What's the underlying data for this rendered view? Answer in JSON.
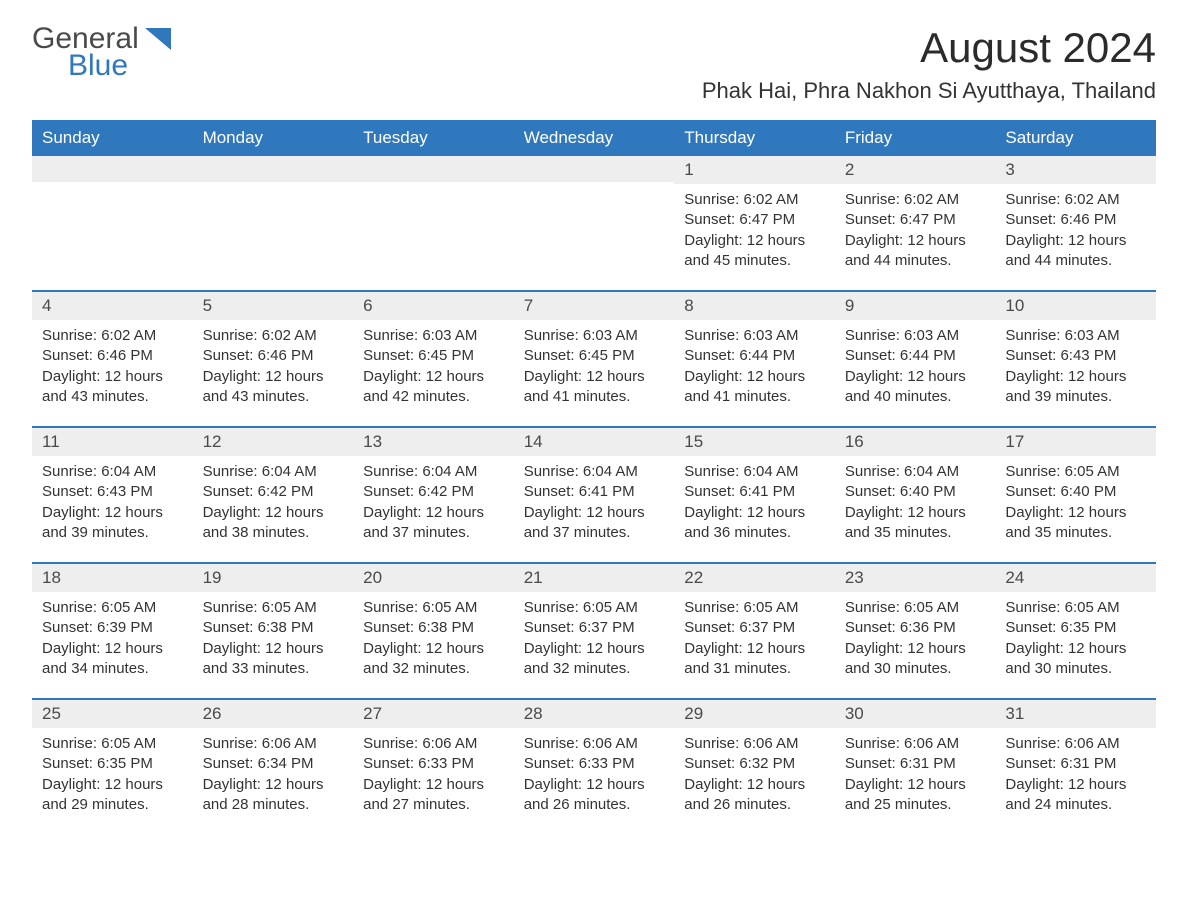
{
  "logo": {
    "general": "General",
    "blue": "Blue"
  },
  "title": "August 2024",
  "location": "Phak Hai, Phra Nakhon Si Ayutthaya, Thailand",
  "colors": {
    "header_bg": "#2f78bd",
    "header_text": "#ffffff",
    "daynum_bg": "#eeeeee",
    "body_text": "#333333",
    "rule": "#2f78bd",
    "page_bg": "#ffffff"
  },
  "typography": {
    "title_fontsize": 42,
    "location_fontsize": 22,
    "dow_fontsize": 17,
    "daynum_fontsize": 17,
    "body_fontsize": 15
  },
  "dow": [
    "Sunday",
    "Monday",
    "Tuesday",
    "Wednesday",
    "Thursday",
    "Friday",
    "Saturday"
  ],
  "weeks": [
    [
      {
        "n": "",
        "sunrise": "",
        "sunset": "",
        "daylight": ""
      },
      {
        "n": "",
        "sunrise": "",
        "sunset": "",
        "daylight": ""
      },
      {
        "n": "",
        "sunrise": "",
        "sunset": "",
        "daylight": ""
      },
      {
        "n": "",
        "sunrise": "",
        "sunset": "",
        "daylight": ""
      },
      {
        "n": "1",
        "sunrise": "Sunrise: 6:02 AM",
        "sunset": "Sunset: 6:47 PM",
        "daylight": "Daylight: 12 hours and 45 minutes."
      },
      {
        "n": "2",
        "sunrise": "Sunrise: 6:02 AM",
        "sunset": "Sunset: 6:47 PM",
        "daylight": "Daylight: 12 hours and 44 minutes."
      },
      {
        "n": "3",
        "sunrise": "Sunrise: 6:02 AM",
        "sunset": "Sunset: 6:46 PM",
        "daylight": "Daylight: 12 hours and 44 minutes."
      }
    ],
    [
      {
        "n": "4",
        "sunrise": "Sunrise: 6:02 AM",
        "sunset": "Sunset: 6:46 PM",
        "daylight": "Daylight: 12 hours and 43 minutes."
      },
      {
        "n": "5",
        "sunrise": "Sunrise: 6:02 AM",
        "sunset": "Sunset: 6:46 PM",
        "daylight": "Daylight: 12 hours and 43 minutes."
      },
      {
        "n": "6",
        "sunrise": "Sunrise: 6:03 AM",
        "sunset": "Sunset: 6:45 PM",
        "daylight": "Daylight: 12 hours and 42 minutes."
      },
      {
        "n": "7",
        "sunrise": "Sunrise: 6:03 AM",
        "sunset": "Sunset: 6:45 PM",
        "daylight": "Daylight: 12 hours and 41 minutes."
      },
      {
        "n": "8",
        "sunrise": "Sunrise: 6:03 AM",
        "sunset": "Sunset: 6:44 PM",
        "daylight": "Daylight: 12 hours and 41 minutes."
      },
      {
        "n": "9",
        "sunrise": "Sunrise: 6:03 AM",
        "sunset": "Sunset: 6:44 PM",
        "daylight": "Daylight: 12 hours and 40 minutes."
      },
      {
        "n": "10",
        "sunrise": "Sunrise: 6:03 AM",
        "sunset": "Sunset: 6:43 PM",
        "daylight": "Daylight: 12 hours and 39 minutes."
      }
    ],
    [
      {
        "n": "11",
        "sunrise": "Sunrise: 6:04 AM",
        "sunset": "Sunset: 6:43 PM",
        "daylight": "Daylight: 12 hours and 39 minutes."
      },
      {
        "n": "12",
        "sunrise": "Sunrise: 6:04 AM",
        "sunset": "Sunset: 6:42 PM",
        "daylight": "Daylight: 12 hours and 38 minutes."
      },
      {
        "n": "13",
        "sunrise": "Sunrise: 6:04 AM",
        "sunset": "Sunset: 6:42 PM",
        "daylight": "Daylight: 12 hours and 37 minutes."
      },
      {
        "n": "14",
        "sunrise": "Sunrise: 6:04 AM",
        "sunset": "Sunset: 6:41 PM",
        "daylight": "Daylight: 12 hours and 37 minutes."
      },
      {
        "n": "15",
        "sunrise": "Sunrise: 6:04 AM",
        "sunset": "Sunset: 6:41 PM",
        "daylight": "Daylight: 12 hours and 36 minutes."
      },
      {
        "n": "16",
        "sunrise": "Sunrise: 6:04 AM",
        "sunset": "Sunset: 6:40 PM",
        "daylight": "Daylight: 12 hours and 35 minutes."
      },
      {
        "n": "17",
        "sunrise": "Sunrise: 6:05 AM",
        "sunset": "Sunset: 6:40 PM",
        "daylight": "Daylight: 12 hours and 35 minutes."
      }
    ],
    [
      {
        "n": "18",
        "sunrise": "Sunrise: 6:05 AM",
        "sunset": "Sunset: 6:39 PM",
        "daylight": "Daylight: 12 hours and 34 minutes."
      },
      {
        "n": "19",
        "sunrise": "Sunrise: 6:05 AM",
        "sunset": "Sunset: 6:38 PM",
        "daylight": "Daylight: 12 hours and 33 minutes."
      },
      {
        "n": "20",
        "sunrise": "Sunrise: 6:05 AM",
        "sunset": "Sunset: 6:38 PM",
        "daylight": "Daylight: 12 hours and 32 minutes."
      },
      {
        "n": "21",
        "sunrise": "Sunrise: 6:05 AM",
        "sunset": "Sunset: 6:37 PM",
        "daylight": "Daylight: 12 hours and 32 minutes."
      },
      {
        "n": "22",
        "sunrise": "Sunrise: 6:05 AM",
        "sunset": "Sunset: 6:37 PM",
        "daylight": "Daylight: 12 hours and 31 minutes."
      },
      {
        "n": "23",
        "sunrise": "Sunrise: 6:05 AM",
        "sunset": "Sunset: 6:36 PM",
        "daylight": "Daylight: 12 hours and 30 minutes."
      },
      {
        "n": "24",
        "sunrise": "Sunrise: 6:05 AM",
        "sunset": "Sunset: 6:35 PM",
        "daylight": "Daylight: 12 hours and 30 minutes."
      }
    ],
    [
      {
        "n": "25",
        "sunrise": "Sunrise: 6:05 AM",
        "sunset": "Sunset: 6:35 PM",
        "daylight": "Daylight: 12 hours and 29 minutes."
      },
      {
        "n": "26",
        "sunrise": "Sunrise: 6:06 AM",
        "sunset": "Sunset: 6:34 PM",
        "daylight": "Daylight: 12 hours and 28 minutes."
      },
      {
        "n": "27",
        "sunrise": "Sunrise: 6:06 AM",
        "sunset": "Sunset: 6:33 PM",
        "daylight": "Daylight: 12 hours and 27 minutes."
      },
      {
        "n": "28",
        "sunrise": "Sunrise: 6:06 AM",
        "sunset": "Sunset: 6:33 PM",
        "daylight": "Daylight: 12 hours and 26 minutes."
      },
      {
        "n": "29",
        "sunrise": "Sunrise: 6:06 AM",
        "sunset": "Sunset: 6:32 PM",
        "daylight": "Daylight: 12 hours and 26 minutes."
      },
      {
        "n": "30",
        "sunrise": "Sunrise: 6:06 AM",
        "sunset": "Sunset: 6:31 PM",
        "daylight": "Daylight: 12 hours and 25 minutes."
      },
      {
        "n": "31",
        "sunrise": "Sunrise: 6:06 AM",
        "sunset": "Sunset: 6:31 PM",
        "daylight": "Daylight: 12 hours and 24 minutes."
      }
    ]
  ]
}
